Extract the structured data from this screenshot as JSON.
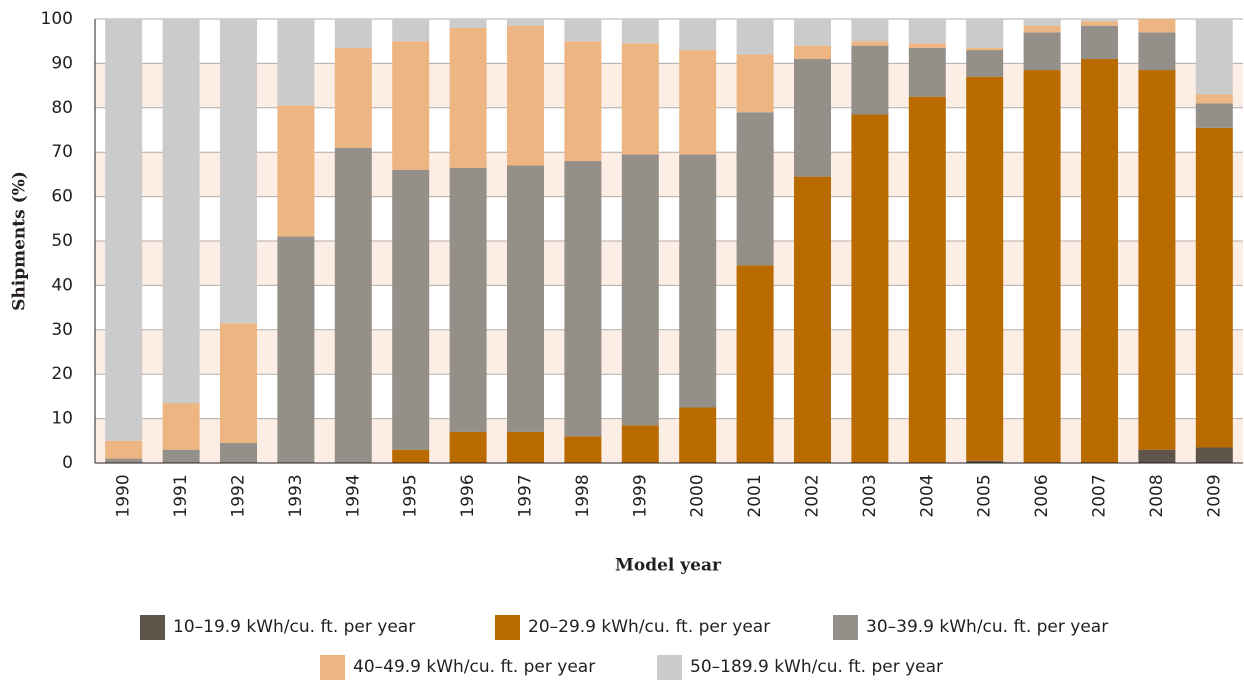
{
  "chart_data": {
    "type": "stacked-bar",
    "x_label": "Model year",
    "y_label": "Shipments (%)",
    "categories": [
      "1990",
      "1991",
      "1992",
      "1993",
      "1994",
      "1995",
      "1996",
      "1997",
      "1998",
      "1999",
      "2000",
      "2001",
      "2002",
      "2003",
      "2004",
      "2005",
      "2006",
      "2007",
      "2008",
      "2009"
    ],
    "series": [
      {
        "name": "10–19.9 kWh/cu. ft. per year",
        "color": "#5f544a",
        "values": [
          0,
          0,
          0,
          0,
          0,
          0,
          0,
          0,
          0,
          0,
          0,
          0,
          0,
          0,
          0,
          0.5,
          0,
          0,
          3,
          3.5
        ]
      },
      {
        "name": "20–29.9 kWh/cu. ft. per year",
        "color": "#b96b00",
        "values": [
          0,
          0,
          0,
          0,
          0,
          3,
          7,
          7,
          6,
          8.5,
          12.5,
          44.5,
          64.5,
          78.5,
          82.5,
          86.5,
          88.5,
          91,
          85.5,
          72
        ]
      },
      {
        "name": "30–39.9 kWh/cu. ft. per year",
        "color": "#958f89",
        "values": [
          1,
          3,
          4.5,
          51,
          71,
          63,
          59.5,
          60,
          62,
          61,
          57,
          34.5,
          26.5,
          15.5,
          11,
          6,
          8.5,
          7.5,
          8.5,
          5.5
        ]
      },
      {
        "name": "40–49.9 kWh/cu. ft. per year",
        "color": "#ecb582",
        "values": [
          4,
          10.5,
          27,
          29.5,
          22.5,
          29,
          31.5,
          31.5,
          27,
          25,
          23.5,
          13,
          3,
          1,
          1,
          0.5,
          1.5,
          1,
          3,
          2
        ]
      },
      {
        "name": "50–189.9 kWh/cu. ft. per year",
        "color": "#cbcbcb",
        "values": [
          95,
          86.5,
          68.5,
          19.5,
          6.5,
          5,
          2,
          1.5,
          5,
          5.5,
          7,
          8,
          6,
          5,
          5.5,
          6.5,
          1.5,
          0.5,
          0,
          17
        ]
      }
    ],
    "ylim": [
      0,
      100
    ],
    "yticks": [
      0,
      10,
      20,
      30,
      40,
      50,
      60,
      70,
      80,
      90,
      100
    ],
    "grid": true,
    "band_color": "#fdeee5"
  }
}
